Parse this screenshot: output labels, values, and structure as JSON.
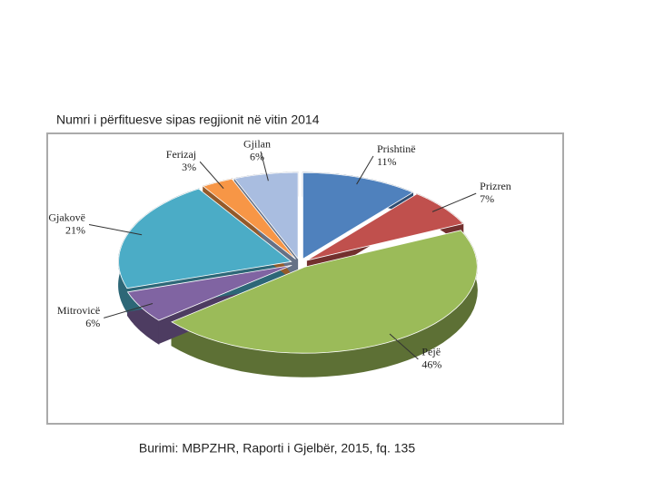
{
  "chart_data": {
    "type": "pie",
    "title": "Numri i përfituesve sipas regjionit në vitin 2014",
    "source": "Burimi: MBPZHR, Raporti i Gjelbër, 2015, fq. 135",
    "categories": [
      "Prishtinë",
      "Prizren",
      "Pejë",
      "Mitrovicë",
      "Gjakovë",
      "Ferizaj",
      "Gjilan"
    ],
    "values": [
      11,
      7,
      46,
      6,
      21,
      3,
      6
    ],
    "value_labels": [
      "11%",
      "7%",
      "46%",
      "6%",
      "21%",
      "3%",
      "6%"
    ],
    "colors": [
      "#4f81bd",
      "#c0504d",
      "#9bbb59",
      "#8064a2",
      "#4bacc6",
      "#f79646",
      "#a9bde0"
    ]
  }
}
